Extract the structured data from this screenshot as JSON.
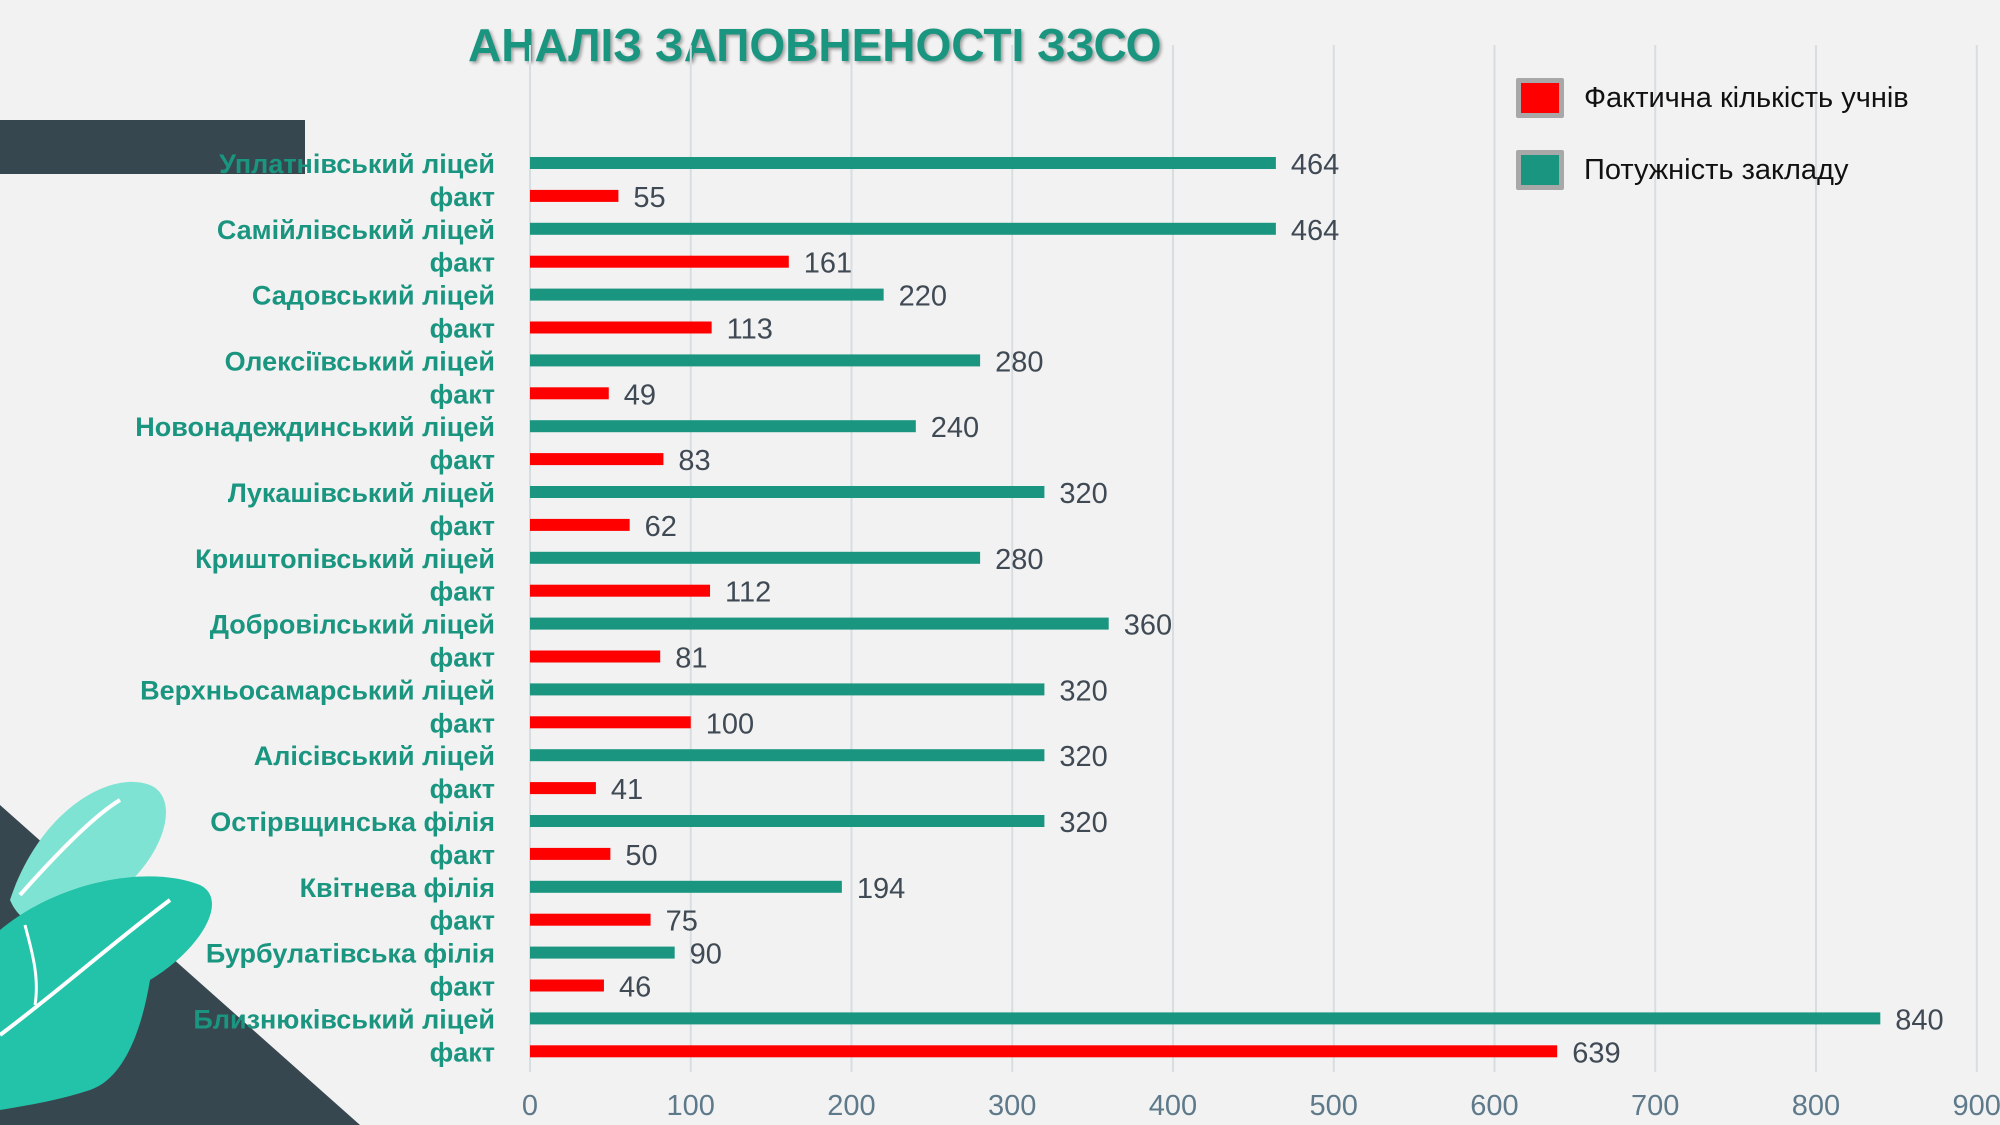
{
  "title": "АНАЛІЗ ЗАПОВНЕНОСТІ ЗЗСО",
  "colors": {
    "capacity": "#1a9580",
    "actual": "#ff0000",
    "title": "#1a9580",
    "grid": "#d6dee2"
  },
  "legend": {
    "actual_label": "Фактична кількість учнів",
    "capacity_label": "Потужність закладу"
  },
  "chart_data": {
    "type": "bar",
    "orientation": "horizontal",
    "title": "АНАЛІЗ ЗАПОВНЕНОСТІ ЗЗСО",
    "xlim": [
      0,
      900
    ],
    "xticks": [
      0,
      100,
      200,
      300,
      400,
      500,
      600,
      700,
      800,
      900
    ],
    "grid": true,
    "legend_position": "top-right",
    "series": [
      {
        "name": "Фактична кількість учнів",
        "color": "#ff0000"
      },
      {
        "name": "Потужність закладу",
        "color": "#1a9580"
      }
    ],
    "rows": [
      {
        "label": "Уплатнівський ліцей",
        "series": "Потужність закладу",
        "value": 464
      },
      {
        "label": "факт",
        "series": "Фактична кількість учнів",
        "value": 55
      },
      {
        "label": "Самійлівський ліцей",
        "series": "Потужність закладу",
        "value": 464
      },
      {
        "label": "факт",
        "series": "Фактична кількість учнів",
        "value": 161
      },
      {
        "label": "Садовський ліцей",
        "series": "Потужність закладу",
        "value": 220
      },
      {
        "label": "факт",
        "series": "Фактична кількість учнів",
        "value": 113
      },
      {
        "label": "Олексіївський ліцей",
        "series": "Потужність закладу",
        "value": 280
      },
      {
        "label": "факт",
        "series": "Фактична кількість учнів",
        "value": 49
      },
      {
        "label": "Новонадеждинський ліцей",
        "series": "Потужність закладу",
        "value": 240
      },
      {
        "label": "факт",
        "series": "Фактична кількість учнів",
        "value": 83
      },
      {
        "label": "Лукашівський ліцей",
        "series": "Потужність закладу",
        "value": 320
      },
      {
        "label": "факт",
        "series": "Фактична кількість учнів",
        "value": 62
      },
      {
        "label": "Криштопівський ліцей",
        "series": "Потужність закладу",
        "value": 280
      },
      {
        "label": "факт",
        "series": "Фактична кількість учнів",
        "value": 112
      },
      {
        "label": "Добровілський ліцей",
        "series": "Потужність закладу",
        "value": 360
      },
      {
        "label": "факт",
        "series": "Фактична кількість учнів",
        "value": 81
      },
      {
        "label": "Верхньосамарський ліцей",
        "series": "Потужність закладу",
        "value": 320
      },
      {
        "label": "факт",
        "series": "Фактична кількість учнів",
        "value": 100
      },
      {
        "label": "Алісівський ліцей",
        "series": "Потужність закладу",
        "value": 320
      },
      {
        "label": "факт",
        "series": "Фактична кількість учнів",
        "value": 41
      },
      {
        "label": "Остірвщинська філія",
        "series": "Потужність закладу",
        "value": 320
      },
      {
        "label": "факт",
        "series": "Фактична кількість учнів",
        "value": 50
      },
      {
        "label": "Квітнева філія",
        "series": "Потужність закладу",
        "value": 194
      },
      {
        "label": "факт",
        "series": "Фактична кількість учнів",
        "value": 75
      },
      {
        "label": "Бурбулатівська філія",
        "series": "Потужність закладу",
        "value": 90
      },
      {
        "label": "факт",
        "series": "Фактична кількість учнів",
        "value": 46
      },
      {
        "label": "Близнюківський ліцей",
        "series": "Потужність закладу",
        "value": 840
      },
      {
        "label": "факт",
        "series": "Фактична кількість учнів",
        "value": 639
      }
    ]
  }
}
